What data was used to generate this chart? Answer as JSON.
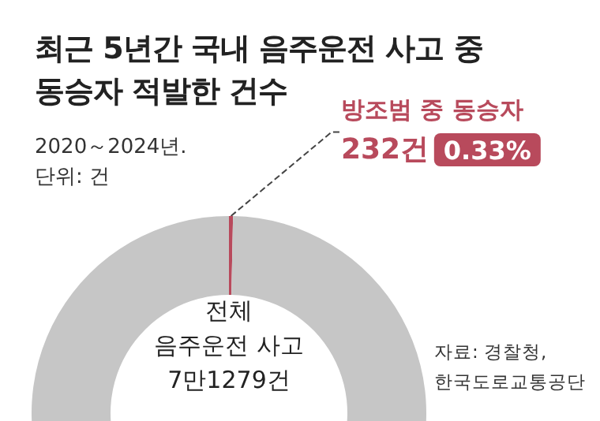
{
  "chart_data": {
    "type": "donut",
    "title": "최근 5년간 국내 음주운전 사고 중 동승자 적발한 건수",
    "subtitle": "2020～2024년.\n단위: 건",
    "categories": [
      "방조범 중 동승자",
      null
    ],
    "values": [
      0.33,
      99.67
    ],
    "colors": [
      "#b84a5c",
      "#c6c6c6"
    ],
    "value_labels": [
      "0.33%",
      null
    ],
    "annotations": [
      "232건",
      "전체\n음주운전 사고\n7만1279건",
      "자료: 경찰청,\n한국도로교통공단"
    ]
  }
}
